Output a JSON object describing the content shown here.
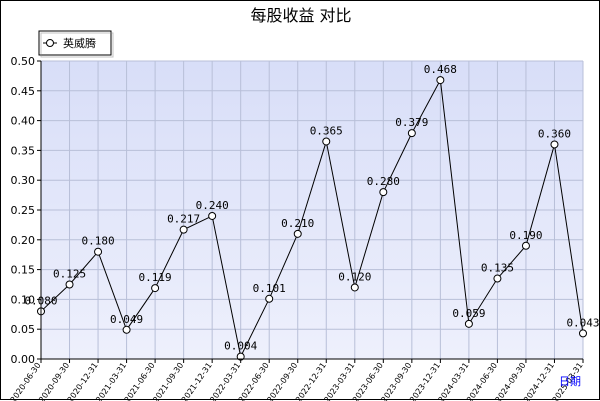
{
  "chart_data": {
    "type": "line",
    "title": "每股收益 对比",
    "xlabel": "日期",
    "ylabel": "",
    "ylim": [
      0,
      0.5
    ],
    "yticks": [
      "0.00",
      "0.05",
      "0.10",
      "0.15",
      "0.20",
      "0.25",
      "0.30",
      "0.35",
      "0.40",
      "0.45",
      "0.50"
    ],
    "categories": [
      "2020-06-30",
      "2020-09-30",
      "2020-12-31",
      "2021-03-31",
      "2021-06-30",
      "2021-09-30",
      "2021-12-31",
      "2022-03-31",
      "2022-06-30",
      "2022-09-30",
      "2022-12-31",
      "2023-03-31",
      "2023-06-30",
      "2023-09-30",
      "2023-12-31",
      "2024-03-31",
      "2024-06-30",
      "2024-09-30",
      "2024-12-31",
      "2025-03-31"
    ],
    "series": [
      {
        "name": "英威腾",
        "values": [
          0.08,
          0.125,
          0.18,
          0.049,
          0.119,
          0.217,
          0.24,
          0.004,
          0.101,
          0.21,
          0.365,
          0.12,
          0.28,
          0.379,
          0.468,
          0.059,
          0.135,
          0.19,
          0.36,
          0.043
        ],
        "labels": [
          "0.080",
          "0.125",
          "0.180",
          "0.049",
          "0.119",
          "0.217",
          "0.240",
          "0.004",
          "0.101",
          "0.210",
          "0.365",
          "0.120",
          "0.280",
          "0.379",
          "0.468",
          "0.059",
          "0.135",
          "0.190",
          "0.360",
          "0.043"
        ]
      }
    ],
    "legend_position": "top-left",
    "grid": true,
    "colors": {
      "plot_bg": "#dde2f8",
      "grid": "#b8bfd8",
      "line": "#000000",
      "marker_fill": "#ffffff",
      "xunit": "#0000ff"
    }
  }
}
